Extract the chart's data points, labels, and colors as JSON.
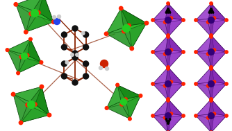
{
  "background_color": "#ffffff",
  "left_panel": {
    "green_face_colors": [
      "#1a9e1a",
      "#22bb22",
      "#0d7a0d",
      "#188818"
    ],
    "green_edge_color": "#003300",
    "green_center_color": "#22cc22",
    "carbon_color": "#111111",
    "oxygen_color": "#cc2200",
    "hydrogen_color": "#cccccc",
    "nitrogen_color": "#2244ee",
    "bond_color": "#882200",
    "red_vertex_color": "#ff2200"
  },
  "right_panel": {
    "purple_face_colors": [
      "#9933cc",
      "#aa44dd",
      "#7722aa",
      "#8833bb"
    ],
    "purple_edge_color": "#330055",
    "metal_color": "#330077",
    "oxygen_color": "#ff2200",
    "chain_color": "#000000"
  },
  "figsize": [
    3.34,
    1.89
  ],
  "dpi": 100
}
